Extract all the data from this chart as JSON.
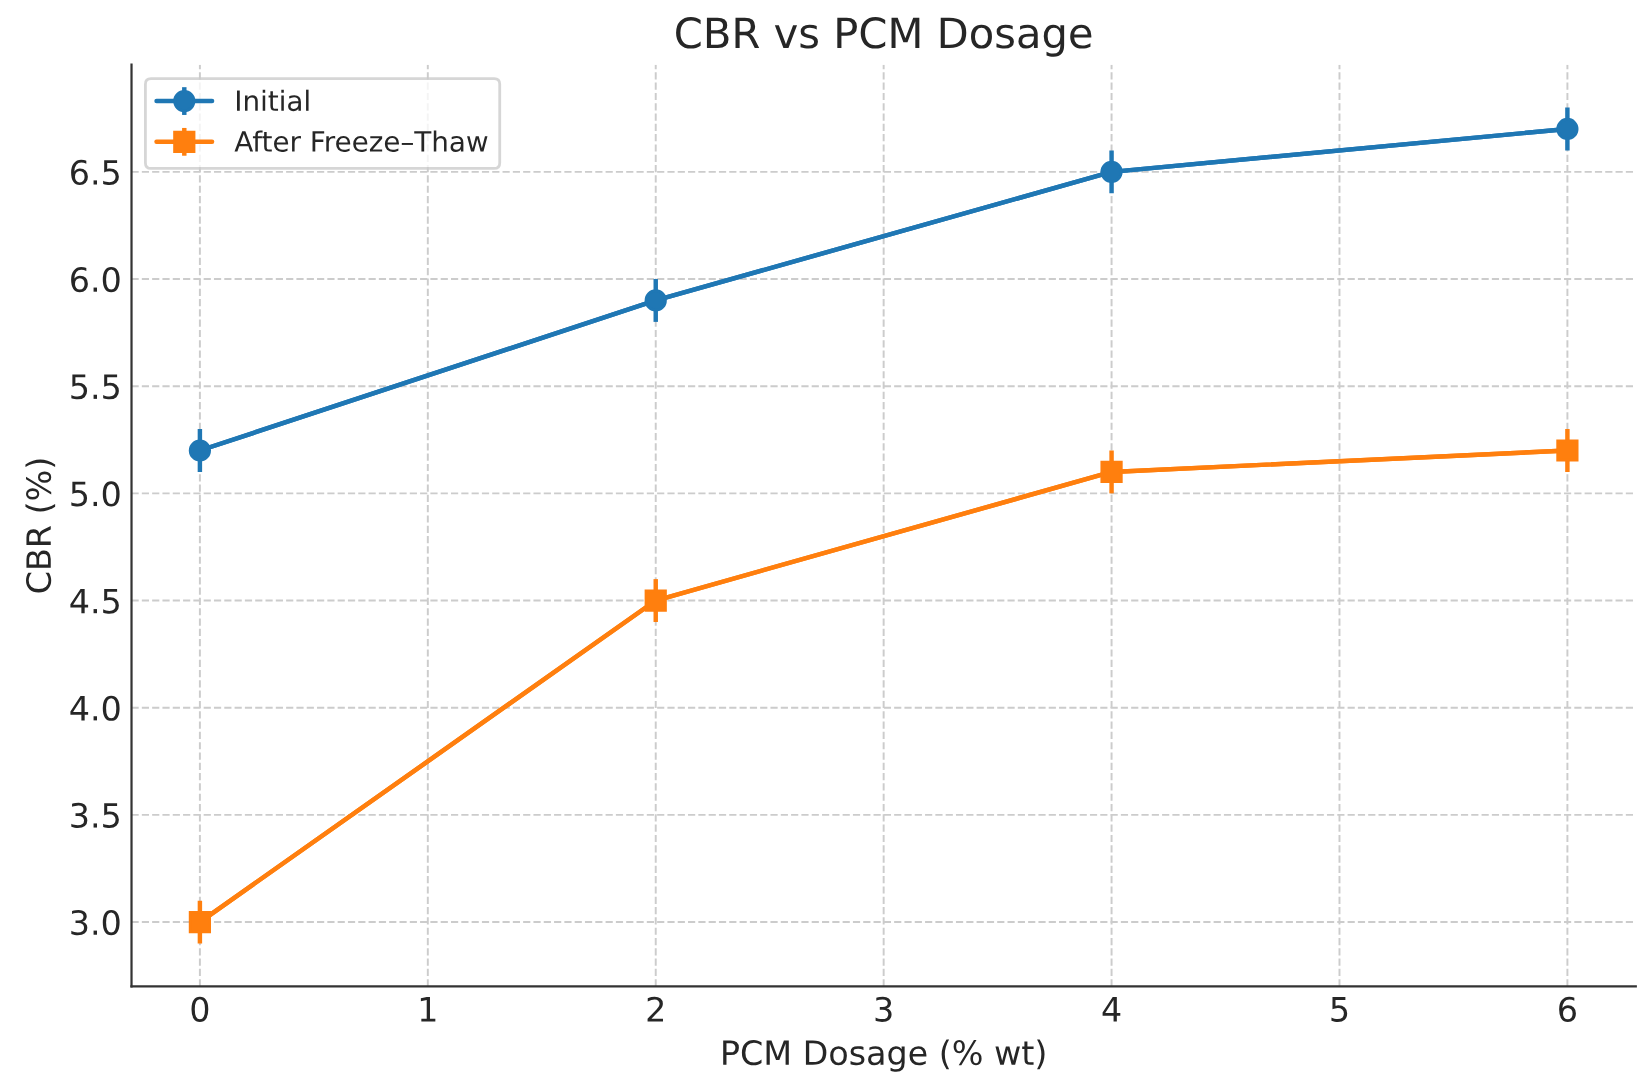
{
  "chart_data": {
    "type": "line",
    "title": "CBR vs PCM Dosage",
    "xlabel": "PCM Dosage (% wt)",
    "ylabel": "CBR (%)",
    "x": [
      0,
      2,
      4,
      6
    ],
    "series": [
      {
        "name": "Initial",
        "color": "#1f77b4",
        "marker": "circle",
        "values": [
          5.2,
          5.9,
          6.5,
          6.7
        ],
        "errors": [
          0.1,
          0.1,
          0.1,
          0.1
        ]
      },
      {
        "name": "After Freeze–Thaw",
        "color": "#ff7f0e",
        "marker": "square",
        "values": [
          3.0,
          4.5,
          5.1,
          5.2
        ],
        "errors": [
          0.1,
          0.1,
          0.1,
          0.1
        ]
      }
    ],
    "xlim": [
      -0.3,
      6.3
    ],
    "xticks": [
      0,
      1,
      2,
      3,
      4,
      5,
      6
    ],
    "ylim": [
      2.7,
      7.0
    ],
    "yticks": [
      {
        "value": 3,
        "label": "3.0"
      },
      3.5,
      {
        "value": 4,
        "label": "4.0"
      },
      4.5,
      {
        "value": 5,
        "label": "5.0"
      },
      5.5,
      {
        "value": 6,
        "label": "6.0"
      },
      6.5
    ],
    "grid": true,
    "legend": "top left",
    "line_style": "solid"
  }
}
